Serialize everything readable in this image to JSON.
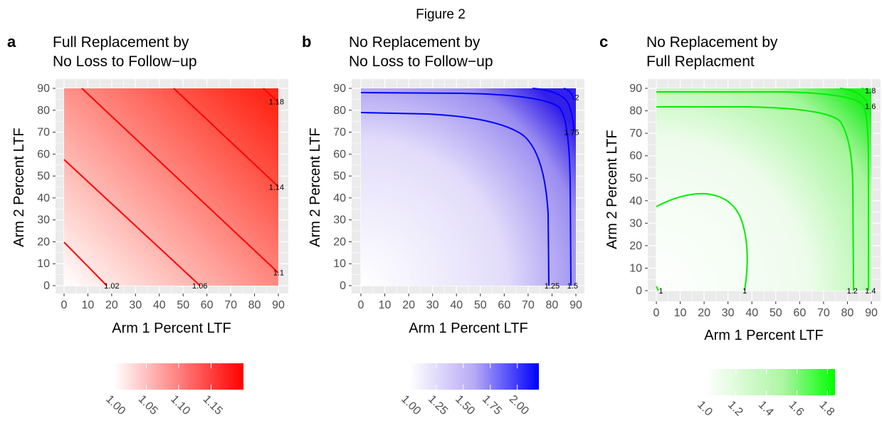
{
  "figure": {
    "title": "Figure 2"
  },
  "colors": {
    "panel_bg": "#ebebeb",
    "grid": "#ffffff",
    "axis_text": "#4d4d4d"
  },
  "chart_data": [
    {
      "type": "heatmap",
      "letter": "a",
      "title_lines": [
        "Full Replacement by",
        "No Loss to Follow−up"
      ],
      "xlabel": "Arm 1 Percent LTF",
      "ylabel": "Arm 2 Percent LTF",
      "x_ticks": [
        "0",
        "10",
        "20",
        "30",
        "40",
        "50",
        "60",
        "70",
        "80",
        "90"
      ],
      "y_ticks": [
        "0",
        "10",
        "20",
        "30",
        "40",
        "50",
        "60",
        "70",
        "80",
        "90"
      ],
      "xlim": [
        0,
        90
      ],
      "ylim": [
        0,
        90
      ],
      "low_color": "#ffffff",
      "high_color": "#ff0000",
      "line_color": "#ff0000",
      "value_range": [
        1.0,
        1.2
      ],
      "contours": [
        {
          "label": "1.02",
          "label_x": 20,
          "label_y": 0
        },
        {
          "label": "1.06",
          "label_x": 57,
          "label_y": 0
        },
        {
          "label": "1.1",
          "label_x": 90,
          "label_y": 6
        },
        {
          "label": "1.14",
          "label_x": 90,
          "label_y": 45
        },
        {
          "label": "1.18",
          "label_x": 90,
          "label_y": 84
        }
      ],
      "legend_ticks": [
        "1.00",
        "1.05",
        "1.10",
        "1.15"
      ]
    },
    {
      "type": "heatmap",
      "letter": "b",
      "title_lines": [
        "No Replacement by",
        "No Loss to Follow−up"
      ],
      "xlabel": "Arm 1 Percent LTF",
      "ylabel": "Arm 2 Percent LTF",
      "x_ticks": [
        "0",
        "10",
        "20",
        "30",
        "40",
        "50",
        "60",
        "70",
        "80",
        "90"
      ],
      "y_ticks": [
        "0",
        "10",
        "20",
        "30",
        "40",
        "50",
        "60",
        "70",
        "80",
        "90"
      ],
      "xlim": [
        0,
        90
      ],
      "ylim": [
        0,
        90
      ],
      "low_color": "#ffffff",
      "high_color": "#0000ff",
      "line_color": "#0000ff",
      "value_range": [
        1.0,
        2.2
      ],
      "contours": [
        {
          "label": "1.25",
          "label_x": 80,
          "label_y": 0
        },
        {
          "label": "1.5",
          "label_x": 88.5,
          "label_y": 0
        },
        {
          "label": "1.75",
          "label_x": 89,
          "label_y": 70
        },
        {
          "label": "2",
          "label_x": 89,
          "label_y": 86
        }
      ],
      "legend_ticks": [
        "1.00",
        "1.25",
        "1.50",
        "1.75",
        "2.00"
      ]
    },
    {
      "type": "heatmap",
      "letter": "c",
      "title_lines": [
        "No Replacement by",
        "Full Replacment"
      ],
      "xlabel": "Arm 1 Percent LTF",
      "ylabel": "Arm 2 Percent LTF",
      "x_ticks": [
        "0",
        "10",
        "20",
        "30",
        "40",
        "50",
        "60",
        "70",
        "80",
        "90"
      ],
      "y_ticks": [
        "0",
        "10",
        "20",
        "30",
        "40",
        "50",
        "60",
        "70",
        "80",
        "90"
      ],
      "xlim": [
        0,
        90
      ],
      "ylim": [
        0,
        90
      ],
      "low_color": "#ffffff",
      "high_color": "#00ff00",
      "line_color": "#00ff00",
      "value_range": [
        1.0,
        1.85
      ],
      "contours": [
        {
          "label": "1",
          "label_x": 1,
          "label_y": 0
        },
        {
          "label": "1",
          "label_x": 37,
          "label_y": 0
        },
        {
          "label": "1.2",
          "label_x": 82,
          "label_y": 0
        },
        {
          "label": "1.4",
          "label_x": 89.5,
          "label_y": 0
        },
        {
          "label": "1.6",
          "label_x": 89.5,
          "label_y": 82
        },
        {
          "label": "1.8",
          "label_x": 89.5,
          "label_y": 89
        }
      ],
      "legend_ticks": [
        "1.0",
        "1.2",
        "1.4",
        "1.6",
        "1.8"
      ]
    }
  ]
}
